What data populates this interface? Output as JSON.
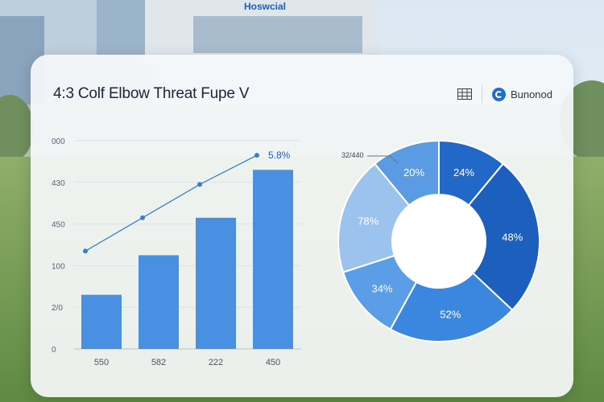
{
  "building_sign": "Hoswcial",
  "header": {
    "title": "4:3 Colf Elbow Threat  Fupe V",
    "brand_label": "Bunonod"
  },
  "colors": {
    "bar": "#4a90e2",
    "line": "#3d7fc4",
    "donut": [
      "#2168c9",
      "#1c5fbc",
      "#3b87e0",
      "#5b9de6",
      "#9cc3ee",
      "#5b9be3"
    ]
  },
  "chart_data": [
    {
      "type": "bar",
      "categories": [
        "550",
        "582",
        "222",
        "450"
      ],
      "values": [
        130,
        225,
        315,
        430
      ],
      "ytick_labels": [
        "0",
        "2/0",
        "100",
        "450",
        "430",
        "000"
      ],
      "ylim": [
        0,
        500
      ],
      "overlay_line": {
        "values": [
          235,
          315,
          395,
          465
        ],
        "end_label": "5.8%"
      }
    },
    {
      "type": "pie",
      "donut": true,
      "slices": [
        {
          "label": "24%",
          "value": 11
        },
        {
          "label": "48%",
          "value": 26
        },
        {
          "label": "52%",
          "value": 21
        },
        {
          "label": "34%",
          "value": 12
        },
        {
          "label": "78%",
          "value": 19
        },
        {
          "label": "20%",
          "value": 11
        }
      ],
      "callout_label": "32/440"
    }
  ]
}
